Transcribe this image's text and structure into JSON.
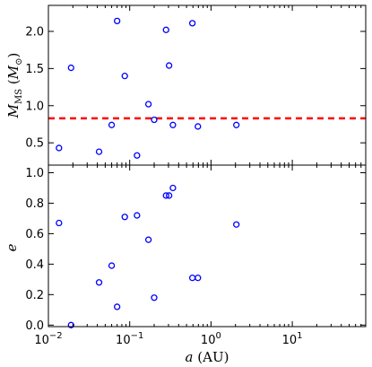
{
  "chart_data": [
    {
      "type": "scatter",
      "panel": "top",
      "title": "",
      "ylabel_parts": {
        "sym": "M",
        "sub": "MS",
        "unit_open": "(",
        "unit_sym": "M",
        "unit_sub": "⊙",
        "unit_close": ")"
      },
      "xlabel": "",
      "xscale": "log",
      "xlim": [
        0.01,
        80
      ],
      "ylim": [
        0.2,
        2.35
      ],
      "yticks": [
        0.5,
        1.0,
        1.5,
        2.0
      ],
      "ytick_labels": [
        "0.5",
        "1.0",
        "1.5",
        "2.0"
      ],
      "reference_line": {
        "y": 0.83,
        "style": "dashed",
        "color": "#ff0000"
      },
      "marker_color": "#0000ff",
      "points": [
        {
          "x": 0.0135,
          "y": 0.43
        },
        {
          "x": 0.019,
          "y": 1.51
        },
        {
          "x": 0.042,
          "y": 0.38
        },
        {
          "x": 0.06,
          "y": 0.74
        },
        {
          "x": 0.07,
          "y": 2.14
        },
        {
          "x": 0.087,
          "y": 1.4
        },
        {
          "x": 0.123,
          "y": 0.33
        },
        {
          "x": 0.17,
          "y": 1.02
        },
        {
          "x": 0.2,
          "y": 0.81
        },
        {
          "x": 0.28,
          "y": 2.02
        },
        {
          "x": 0.305,
          "y": 1.54
        },
        {
          "x": 0.34,
          "y": 0.74
        },
        {
          "x": 0.59,
          "y": 2.11
        },
        {
          "x": 0.69,
          "y": 0.72
        },
        {
          "x": 2.05,
          "y": 0.74
        }
      ]
    },
    {
      "type": "scatter",
      "panel": "bottom",
      "title": "",
      "ylabel": "e",
      "xlabel_parts": {
        "sym": "a",
        "unit": "(AU)"
      },
      "xscale": "log",
      "xlim": [
        0.01,
        80
      ],
      "ylim": [
        -0.01,
        1.05
      ],
      "yticks": [
        0.0,
        0.2,
        0.4,
        0.6,
        0.8,
        1.0
      ],
      "ytick_labels": [
        "0.0",
        "0.2",
        "0.4",
        "0.6",
        "0.8",
        "1.0"
      ],
      "xticks": [
        0.01,
        0.1,
        1,
        10
      ],
      "xtick_labels": [
        {
          "base": "10",
          "exp": "−2"
        },
        {
          "base": "10",
          "exp": "−1"
        },
        {
          "base": "10",
          "exp": "0"
        },
        {
          "base": "10",
          "exp": "1"
        }
      ],
      "marker_color": "#0000ff",
      "points": [
        {
          "x": 0.0135,
          "y": 0.67
        },
        {
          "x": 0.019,
          "y": 0.0
        },
        {
          "x": 0.042,
          "y": 0.28
        },
        {
          "x": 0.06,
          "y": 0.39
        },
        {
          "x": 0.07,
          "y": 0.12
        },
        {
          "x": 0.087,
          "y": 0.71
        },
        {
          "x": 0.123,
          "y": 0.72
        },
        {
          "x": 0.17,
          "y": 0.56
        },
        {
          "x": 0.2,
          "y": 0.18
        },
        {
          "x": 0.28,
          "y": 0.85
        },
        {
          "x": 0.305,
          "y": 0.85
        },
        {
          "x": 0.34,
          "y": 0.9
        },
        {
          "x": 0.59,
          "y": 0.31
        },
        {
          "x": 0.69,
          "y": 0.31
        },
        {
          "x": 2.05,
          "y": 0.66
        }
      ]
    }
  ]
}
